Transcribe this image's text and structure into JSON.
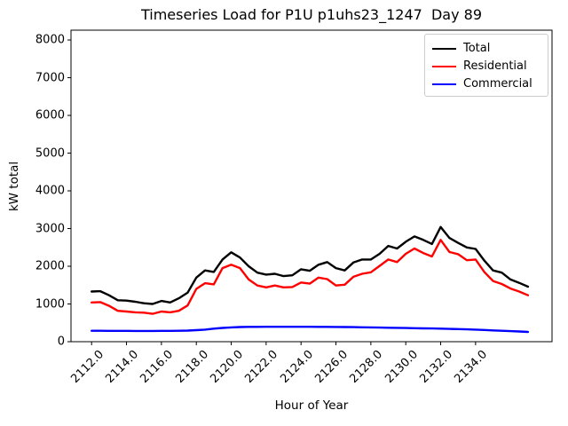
{
  "figure": {
    "title": "Timeseries Load for P1U p1uhs23_1247  Day 89",
    "xlabel": "Hour of Year",
    "ylabel": "kW total"
  },
  "chart_data": {
    "type": "line",
    "title": "Timeseries Load for P1U p1uhs23_1247  Day 89",
    "xlabel": "Hour of Year",
    "ylabel": "kW total",
    "xlim": [
      2110.82,
      2138.38
    ],
    "ylim": [
      0,
      8260
    ],
    "x_ticks": [
      2112.0,
      2114.0,
      2116.0,
      2118.0,
      2120.0,
      2122.0,
      2124.0,
      2126.0,
      2128.0,
      2130.0,
      2132.0,
      2134.0
    ],
    "x_tick_labels": [
      "2112.0",
      "2114.0",
      "2116.0",
      "2118.0",
      "2120.0",
      "2122.0",
      "2124.0",
      "2126.0",
      "2128.0",
      "2130.0",
      "2132.0",
      "2134.0"
    ],
    "y_ticks": [
      0,
      1000,
      2000,
      3000,
      4000,
      5000,
      6000,
      7000,
      8000
    ],
    "grid": false,
    "legend_position": "upper right",
    "x": [
      2112.0,
      2112.5,
      2113.0,
      2113.5,
      2114.0,
      2114.5,
      2115.0,
      2115.5,
      2116.0,
      2116.5,
      2117.0,
      2117.5,
      2118.0,
      2118.5,
      2119.0,
      2119.5,
      2120.0,
      2120.5,
      2121.0,
      2121.5,
      2122.0,
      2122.5,
      2123.0,
      2123.5,
      2124.0,
      2124.5,
      2125.0,
      2125.5,
      2126.0,
      2126.5,
      2127.0,
      2127.5,
      2128.0,
      2128.5,
      2129.0,
      2129.5,
      2130.0,
      2130.5,
      2131.0,
      2131.5,
      2132.0,
      2132.5,
      2133.0,
      2133.5,
      2134.0,
      2134.5,
      2135.0,
      2135.5,
      2136.0,
      2136.5,
      2137.0
    ],
    "series": [
      {
        "name": "Total",
        "color": "#000000",
        "values": [
          1330,
          1340,
          1230,
          1100,
          1090,
          1060,
          1020,
          1000,
          1080,
          1040,
          1150,
          1300,
          1700,
          1890,
          1850,
          2180,
          2370,
          2230,
          2000,
          1830,
          1780,
          1800,
          1740,
          1760,
          1920,
          1880,
          2040,
          2110,
          1950,
          1890,
          2100,
          2180,
          2180,
          2330,
          2540,
          2470,
          2650,
          2790,
          2700,
          2590,
          3040,
          2750,
          2620,
          2500,
          2460,
          2150,
          1890,
          1830,
          1650,
          1560,
          1460
        ]
      },
      {
        "name": "Residential",
        "color": "#ff0000",
        "values": [
          1040,
          1050,
          950,
          820,
          800,
          780,
          770,
          740,
          800,
          780,
          820,
          960,
          1400,
          1550,
          1520,
          1950,
          2040,
          1950,
          1650,
          1490,
          1440,
          1490,
          1440,
          1450,
          1570,
          1540,
          1700,
          1660,
          1490,
          1510,
          1720,
          1800,
          1840,
          2010,
          2180,
          2110,
          2330,
          2470,
          2350,
          2260,
          2700,
          2380,
          2320,
          2160,
          2180,
          1850,
          1610,
          1530,
          1410,
          1330,
          1230
        ]
      },
      {
        "name": "Commercial",
        "color": "#0000ff",
        "values": [
          290,
          290,
          288,
          287,
          286,
          285,
          285,
          285,
          287,
          288,
          290,
          295,
          305,
          320,
          345,
          365,
          380,
          388,
          392,
          394,
          395,
          396,
          396,
          396,
          395,
          395,
          394,
          392,
          390,
          388,
          385,
          382,
          378,
          374,
          370,
          366,
          362,
          358,
          354,
          350,
          345,
          340,
          334,
          328,
          320,
          310,
          300,
          290,
          280,
          270,
          260
        ]
      }
    ]
  }
}
